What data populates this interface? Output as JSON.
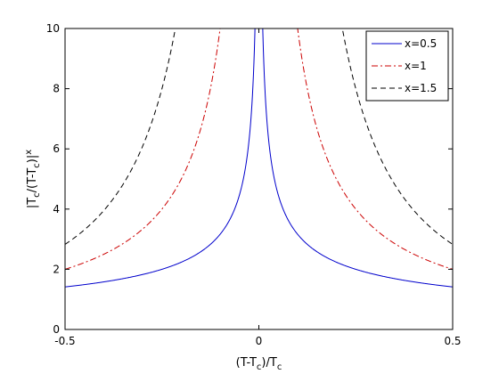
{
  "chart_data": {
    "type": "line",
    "xlabel": "(T-T_c)/T_c",
    "ylabel": "|T_c/(T-T_c)|^x",
    "xlim": [
      -0.5,
      0.5
    ],
    "ylim": [
      0,
      10
    ],
    "xticks": [
      "-0.5",
      "0",
      "0.5"
    ],
    "yticks": [
      "0",
      "2",
      "4",
      "6",
      "8",
      "10"
    ],
    "grid": false,
    "legend_position": "top-right",
    "function": "|T_c/(T-T_c)|^x = |1/t|^x where t = (T-T_c)/T_c",
    "series": [
      {
        "name": "x=0.5",
        "exponent": 0.5,
        "color": "#0000cc",
        "dash": "solid",
        "x": [
          -0.5,
          -0.4,
          -0.3,
          -0.2,
          -0.1,
          -0.05,
          -0.02,
          -0.01,
          0.01,
          0.02,
          0.05,
          0.1,
          0.2,
          0.3,
          0.4,
          0.5
        ],
        "y": [
          1.414,
          1.581,
          1.826,
          2.236,
          3.162,
          4.472,
          7.071,
          10.0,
          10.0,
          7.071,
          4.472,
          3.162,
          2.236,
          1.826,
          1.581,
          1.414
        ]
      },
      {
        "name": "x=1",
        "exponent": 1,
        "color": "#cc0000",
        "dash": "dashdot",
        "x": [
          -0.5,
          -0.4,
          -0.3,
          -0.2,
          -0.15,
          -0.1,
          0.1,
          0.15,
          0.2,
          0.3,
          0.4,
          0.5
        ],
        "y": [
          2.0,
          2.5,
          3.333,
          5.0,
          6.667,
          10.0,
          10.0,
          6.667,
          5.0,
          3.333,
          2.5,
          2.0
        ]
      },
      {
        "name": "x=1.5",
        "exponent": 1.5,
        "color": "#000000",
        "dash": "dashed",
        "x": [
          -0.5,
          -0.4,
          -0.3,
          -0.25,
          -0.2154,
          0.2154,
          0.25,
          0.3,
          0.4,
          0.5
        ],
        "y": [
          2.828,
          3.953,
          6.086,
          8.0,
          10.0,
          10.0,
          8.0,
          6.086,
          3.953,
          2.828
        ]
      }
    ]
  }
}
